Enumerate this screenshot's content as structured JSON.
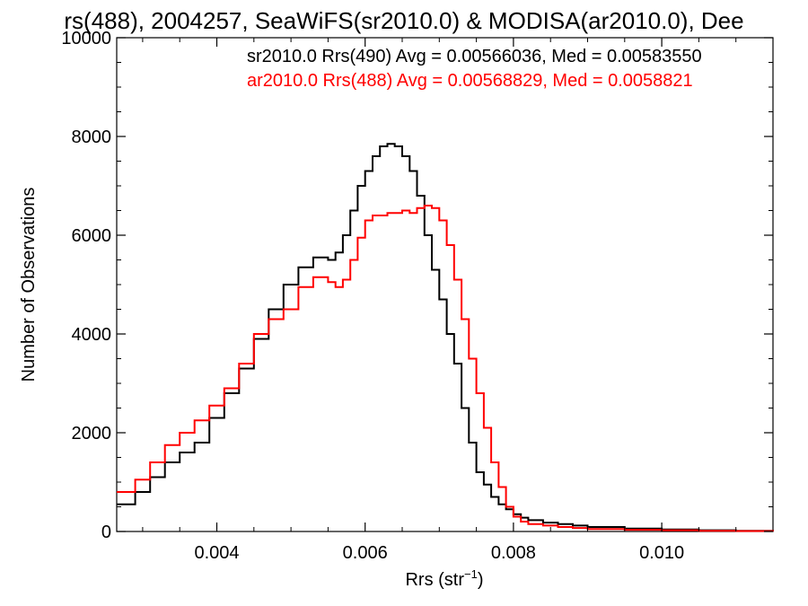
{
  "chart_data": {
    "type": "line",
    "step": true,
    "title": "rs(488), 2004257, SeaWiFS(sr2010.0) & MODISA(ar2010.0), Dee",
    "xlabel": "Rrs (str",
    "xlabel_sup": "−1",
    "xlabel_end": ")",
    "ylabel": "Number of Observations",
    "xlim": [
      0.00265,
      0.0115
    ],
    "ylim": [
      0,
      10000
    ],
    "x_ticks": [
      0.004,
      0.006,
      0.008,
      0.01
    ],
    "x_tick_labels": [
      "0.004",
      "0.006",
      "0.008",
      "0.010"
    ],
    "y_ticks": [
      0,
      2000,
      4000,
      6000,
      8000,
      10000
    ],
    "y_tick_labels": [
      "0",
      "2000",
      "4000",
      "6000",
      "8000",
      "10000"
    ],
    "grid": false,
    "legend_placement": "top-right",
    "annotations": [
      {
        "text": "sr2010.0 Rrs(490) Avg = 0.00566036, Med = 0.00583550",
        "color": "#000000"
      },
      {
        "text": "ar2010.0 Rrs(488) Avg = 0.00568829, Med = 0.0058821",
        "color": "#ff0000"
      }
    ],
    "series": [
      {
        "color": "#000000",
        "x": [
          0.00265,
          0.0029,
          0.0031,
          0.0033,
          0.0035,
          0.0037,
          0.0039,
          0.0041,
          0.0043,
          0.0045,
          0.0047,
          0.0049,
          0.0051,
          0.0053,
          0.0055,
          0.0056,
          0.0057,
          0.0058,
          0.0059,
          0.006,
          0.0061,
          0.0062,
          0.0063,
          0.0064,
          0.0065,
          0.0066,
          0.0067,
          0.0068,
          0.0069,
          0.007,
          0.0071,
          0.0072,
          0.0073,
          0.0074,
          0.0075,
          0.0076,
          0.0077,
          0.0078,
          0.0079,
          0.008,
          0.0081,
          0.0082,
          0.0084,
          0.0086,
          0.0088,
          0.009,
          0.0095,
          0.01,
          0.0105,
          0.011,
          0.0115
        ],
        "y": [
          550,
          800,
          1100,
          1400,
          1600,
          1800,
          2300,
          2800,
          3300,
          3900,
          4500,
          5000,
          5350,
          5550,
          5500,
          5650,
          6000,
          6500,
          7000,
          7300,
          7600,
          7800,
          7850,
          7800,
          7600,
          7300,
          6800,
          6000,
          5300,
          4700,
          4000,
          3400,
          2500,
          1800,
          1200,
          950,
          700,
          550,
          450,
          350,
          280,
          230,
          180,
          150,
          120,
          90,
          60,
          40,
          25,
          15,
          10
        ]
      },
      {
        "color": "#ff0000",
        "x": [
          0.00265,
          0.0029,
          0.0031,
          0.0033,
          0.0035,
          0.0037,
          0.0039,
          0.0041,
          0.0043,
          0.0045,
          0.0047,
          0.0049,
          0.0051,
          0.0053,
          0.0055,
          0.0056,
          0.0057,
          0.0058,
          0.0059,
          0.006,
          0.0061,
          0.0062,
          0.0063,
          0.0064,
          0.0065,
          0.0066,
          0.0067,
          0.0068,
          0.0069,
          0.007,
          0.0071,
          0.0072,
          0.0073,
          0.0074,
          0.0075,
          0.0076,
          0.0077,
          0.0078,
          0.0079,
          0.008,
          0.0081,
          0.0082,
          0.0084,
          0.0086,
          0.0088,
          0.009,
          0.0095,
          0.01,
          0.0105,
          0.011,
          0.0115
        ],
        "y": [
          800,
          1050,
          1400,
          1750,
          2000,
          2250,
          2550,
          2900,
          3400,
          4000,
          4300,
          4500,
          4950,
          5150,
          5050,
          4950,
          5100,
          5500,
          5950,
          6300,
          6400,
          6400,
          6450,
          6450,
          6500,
          6450,
          6550,
          6600,
          6550,
          6300,
          5800,
          5100,
          4300,
          3500,
          2800,
          2100,
          1400,
          900,
          500,
          300,
          200,
          150,
          120,
          90,
          70,
          50,
          35,
          25,
          15,
          10,
          5
        ]
      }
    ]
  }
}
